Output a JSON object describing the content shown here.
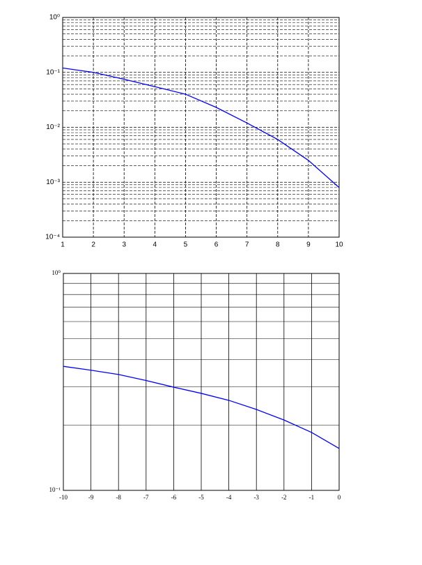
{
  "chart_data": [
    {
      "type": "line",
      "log_y": true,
      "grid": true,
      "minor_grid": true,
      "grid_style": "dashed",
      "x": [
        1,
        2,
        3,
        4,
        5,
        6,
        7,
        8,
        9,
        10
      ],
      "series": [
        {
          "color": "#0000ff",
          "values": [
            0.12,
            0.1,
            0.075,
            0.055,
            0.04,
            0.023,
            0.012,
            0.006,
            0.0025,
            0.0008
          ]
        }
      ],
      "xlim": [
        1,
        10
      ],
      "xticks": [
        1,
        2,
        3,
        4,
        5,
        6,
        7,
        8,
        9,
        10
      ],
      "ylim": [
        0.0001,
        1
      ],
      "yticks": [
        {
          "value": 0.0001,
          "label": "10⁻⁴"
        },
        {
          "value": 0.001,
          "label": "10⁻³"
        },
        {
          "value": 0.01,
          "label": "10⁻²"
        },
        {
          "value": 0.1,
          "label": "10⁻¹"
        },
        {
          "value": 1,
          "label": "10⁰"
        }
      ]
    },
    {
      "type": "line",
      "log_y": true,
      "grid": true,
      "minor_grid": true,
      "grid_style": "solid",
      "x": [
        -10,
        -9,
        -8,
        -7,
        -6,
        -5,
        -4,
        -3,
        -2,
        -1,
        0
      ],
      "series": [
        {
          "color": "#0000ff",
          "values": [
            0.373,
            0.358,
            0.342,
            0.321,
            0.299,
            0.28,
            0.26,
            0.236,
            0.211,
            0.185,
            0.156
          ]
        }
      ],
      "xlim": [
        -10,
        0
      ],
      "xticks": [
        -10,
        -9,
        -8,
        -7,
        -6,
        -5,
        -4,
        -3,
        -2,
        -1,
        0
      ],
      "ylim": [
        0.1,
        1
      ],
      "yticks": [
        {
          "value": 0.1,
          "label": "10⁻¹"
        },
        {
          "value": 1,
          "label": "10⁰"
        }
      ]
    }
  ]
}
